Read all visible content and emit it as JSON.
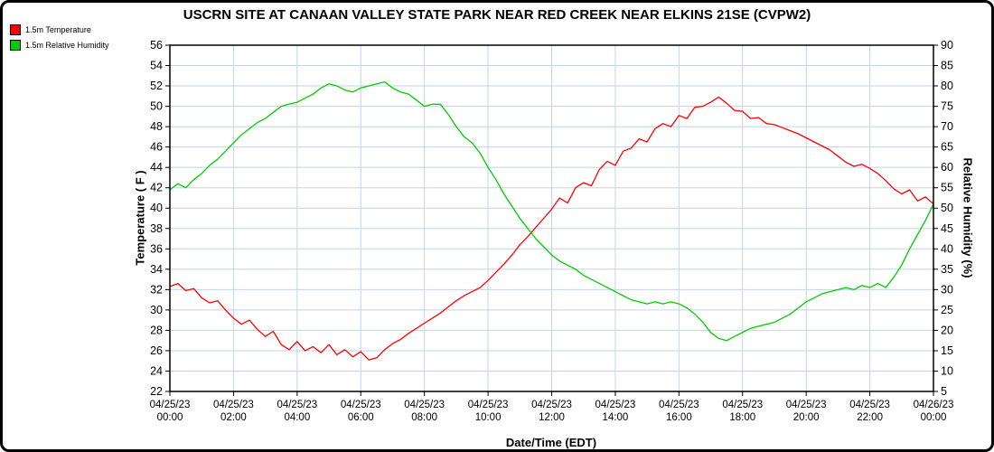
{
  "title": "USCRN SITE AT CANAAN VALLEY STATE PARK NEAR RED CREEK NEAR ELKINS 21SE (CVPW2)",
  "chart_data": {
    "type": "line",
    "title": "USCRN SITE AT CANAAN VALLEY STATE PARK NEAR RED CREEK NEAR ELKINS 21SE (CVPW2)",
    "xlabel": "Date/Time (EDT)",
    "ylabel_left": "Temperature ( F )",
    "ylabel_right": "Relative Humidity (%)",
    "xlim_hours": [
      0,
      24
    ],
    "x_start_hour": 0,
    "x_step_hours": 0.25,
    "ylim_left": [
      22,
      56
    ],
    "ytick_step_left": 2,
    "ylim_right": [
      5,
      90
    ],
    "ytick_step_right": 5,
    "grid": true,
    "grid_color": "#c3d3ec",
    "legend_position": "top-left",
    "x_ticks": [
      {
        "hour": 0,
        "date": "04/25/23",
        "time": "00:00"
      },
      {
        "hour": 2,
        "date": "04/25/23",
        "time": "02:00"
      },
      {
        "hour": 4,
        "date": "04/25/23",
        "time": "04:00"
      },
      {
        "hour": 6,
        "date": "04/25/23",
        "time": "06:00"
      },
      {
        "hour": 8,
        "date": "04/25/23",
        "time": "08:00"
      },
      {
        "hour": 10,
        "date": "04/25/23",
        "time": "10:00"
      },
      {
        "hour": 12,
        "date": "04/25/23",
        "time": "12:00"
      },
      {
        "hour": 14,
        "date": "04/25/23",
        "time": "14:00"
      },
      {
        "hour": 16,
        "date": "04/25/23",
        "time": "16:00"
      },
      {
        "hour": 18,
        "date": "04/25/23",
        "time": "18:00"
      },
      {
        "hour": 20,
        "date": "04/25/23",
        "time": "20:00"
      },
      {
        "hour": 22,
        "date": "04/25/23",
        "time": "22:00"
      },
      {
        "hour": 24,
        "date": "04/26/23",
        "time": "00:00"
      }
    ],
    "series": [
      {
        "id": "temperature",
        "name": "1.5m Temperature",
        "axis": "left",
        "color": "#ff0000",
        "values": [
          32.3,
          32.6,
          31.9,
          32.1,
          31.2,
          30.7,
          30.9,
          30.0,
          29.2,
          28.6,
          29.0,
          28.1,
          27.4,
          27.9,
          26.6,
          26.1,
          26.9,
          26.0,
          26.4,
          25.8,
          26.6,
          25.6,
          26.1,
          25.4,
          25.9,
          25.1,
          25.3,
          26.1,
          26.7,
          27.1,
          27.7,
          28.2,
          28.7,
          29.2,
          29.7,
          30.3,
          30.9,
          31.4,
          31.8,
          32.2,
          32.9,
          33.7,
          34.5,
          35.4,
          36.4,
          37.2,
          38.1,
          39.0,
          39.9,
          41.0,
          40.5,
          42.0,
          42.5,
          42.2,
          43.8,
          44.6,
          44.2,
          45.6,
          45.9,
          46.8,
          46.5,
          47.8,
          48.3,
          48.0,
          49.1,
          48.8,
          49.9,
          50.0,
          50.4,
          50.9,
          50.3,
          49.6,
          49.5,
          48.8,
          48.9,
          48.3,
          48.2,
          47.9,
          47.6,
          47.3,
          46.9,
          46.5,
          46.1,
          45.7,
          45.1,
          44.5,
          44.1,
          44.3,
          43.9,
          43.4,
          42.7,
          41.9,
          41.4,
          41.8,
          40.7,
          41.1,
          40.4
        ]
      },
      {
        "id": "relative-humidity",
        "name": "1.5m Relative Humidity",
        "axis": "right",
        "color": "#00cc00",
        "values": [
          54.5,
          56.0,
          55.0,
          57.0,
          58.5,
          60.5,
          62.0,
          64.0,
          66.0,
          68.0,
          69.5,
          71.0,
          72.0,
          73.5,
          75.0,
          75.5,
          76.0,
          77.0,
          78.0,
          79.5,
          80.5,
          80.0,
          79.0,
          78.5,
          79.5,
          80.0,
          80.5,
          81.0,
          79.5,
          78.5,
          78.0,
          76.5,
          75.0,
          75.5,
          75.5,
          73.0,
          70.0,
          67.5,
          66.0,
          63.5,
          60.0,
          57.0,
          53.5,
          50.5,
          47.5,
          45.0,
          42.5,
          40.5,
          38.5,
          37.0,
          36.0,
          35.0,
          33.5,
          32.5,
          31.5,
          30.5,
          29.5,
          28.5,
          27.5,
          27.0,
          26.5,
          27.0,
          26.5,
          27.0,
          26.5,
          25.5,
          24.0,
          22.0,
          19.5,
          18.0,
          17.5,
          18.5,
          19.5,
          20.5,
          21.0,
          21.5,
          22.0,
          23.0,
          24.0,
          25.5,
          27.0,
          28.0,
          29.0,
          29.5,
          30.0,
          30.5,
          30.0,
          31.0,
          30.5,
          31.5,
          30.5,
          33.0,
          36.0,
          40.0,
          43.5,
          47.0,
          51.0
        ]
      }
    ]
  }
}
